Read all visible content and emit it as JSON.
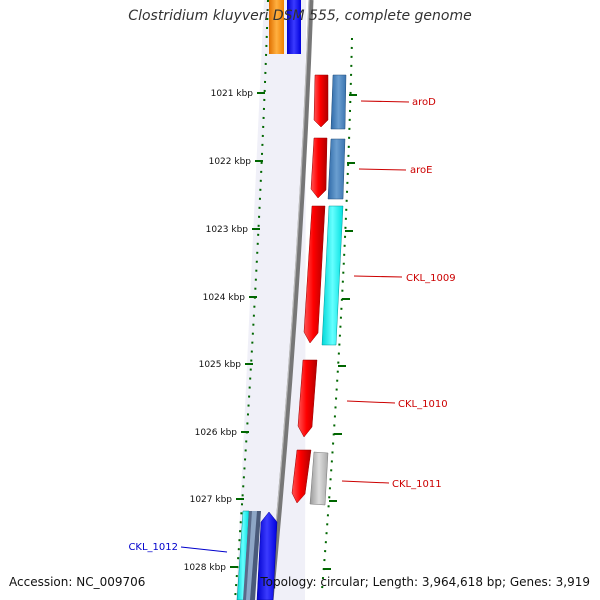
{
  "title": "Clostridium kluyveri DSM 555, complete genome",
  "accession": "Accession: NC_009706",
  "topology": "Topology: circular; Length: 3,964,618 bp; Genes: 3,919",
  "colors": {
    "cds": "#ff0000",
    "cds_reverse": "#0000ff",
    "tick": "#006600",
    "backbone": "#777777",
    "label_forward": "#cc0000",
    "label_reverse": "#0000cc"
  },
  "scale": {
    "unit": "kbp",
    "ticks": [
      {
        "kbp": 1021,
        "label": "1021 kbp"
      },
      {
        "kbp": 1022,
        "label": "1022 kbp"
      },
      {
        "kbp": 1023,
        "label": "1023 kbp"
      },
      {
        "kbp": 1024,
        "label": "1024 kbp"
      },
      {
        "kbp": 1025,
        "label": "1025 kbp"
      },
      {
        "kbp": 1026,
        "label": "1026 kbp"
      },
      {
        "kbp": 1027,
        "label": "1027 kbp"
      },
      {
        "kbp": 1028,
        "label": "1028 kbp"
      }
    ]
  },
  "genes": [
    {
      "label": "aroD",
      "strand": "forward"
    },
    {
      "label": "aroE",
      "strand": "forward"
    },
    {
      "label": "CKL_1009",
      "strand": "forward"
    },
    {
      "label": "CKL_1010",
      "strand": "forward"
    },
    {
      "label": "CKL_1011",
      "strand": "forward"
    },
    {
      "label": "CKL_1012",
      "strand": "reverse"
    }
  ]
}
